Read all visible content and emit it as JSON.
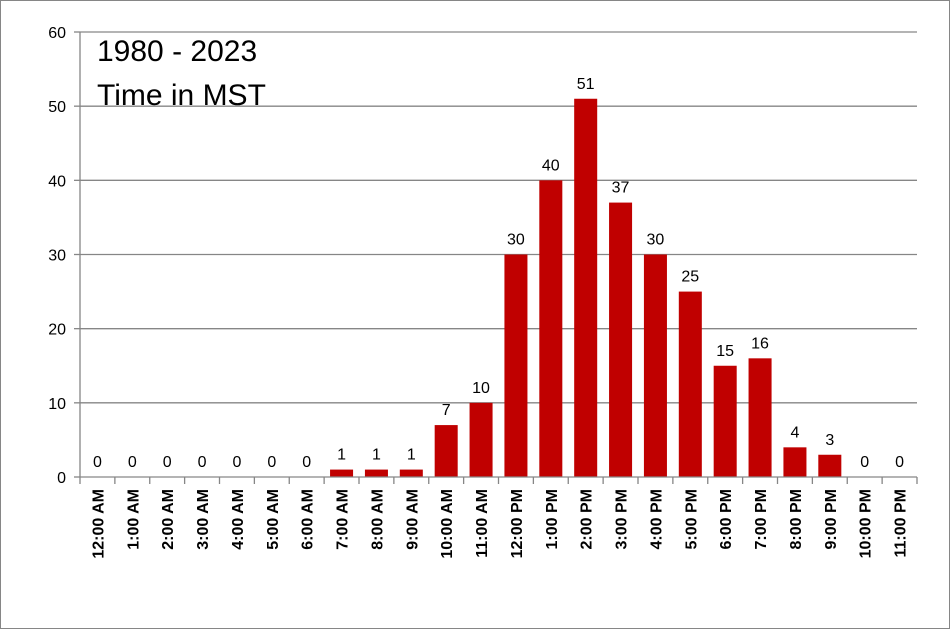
{
  "chart_data": {
    "type": "bar",
    "annotations": [
      "1980 - 2023",
      "Time in MST"
    ],
    "categories": [
      "12:00 AM",
      "1:00 AM",
      "2:00 AM",
      "3:00 AM",
      "4:00 AM",
      "5:00 AM",
      "6:00 AM",
      "7:00 AM",
      "8:00 AM",
      "9:00 AM",
      "10:00 AM",
      "11:00 AM",
      "12:00 PM",
      "1:00 PM",
      "2:00 PM",
      "3:00 PM",
      "4:00 PM",
      "5:00 PM",
      "6:00 PM",
      "7:00 PM",
      "8:00 PM",
      "9:00 PM",
      "10:00 PM",
      "11:00 PM"
    ],
    "values": [
      0,
      0,
      0,
      0,
      0,
      0,
      0,
      1,
      1,
      1,
      7,
      10,
      30,
      40,
      51,
      37,
      30,
      25,
      15,
      16,
      4,
      3,
      0,
      0
    ],
    "ylim": [
      0,
      60
    ],
    "yticks": [
      0,
      10,
      20,
      30,
      40,
      50,
      60
    ],
    "grid": "horizontal",
    "legend": "none",
    "bar_color": "#c00000"
  }
}
